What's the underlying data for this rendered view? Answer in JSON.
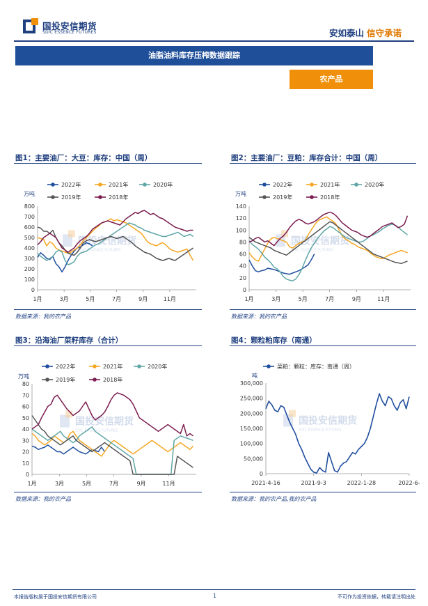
{
  "header": {
    "company_cn": "国投安信期货",
    "company_en": "SDIC ESSENCE FUTURES",
    "slogan_a": "安如泰山",
    "slogan_b": "信守承诺",
    "brand_color": "#1f3f7f",
    "accent_color": "#f0900a"
  },
  "report": {
    "title": "油脂油料库存压榨数据跟踪",
    "category": "农产品"
  },
  "watermark": {
    "cn": "国投安信期货",
    "en": "SDIC ESSENCE FUTURES"
  },
  "figures": [
    {
      "title": "图1：主要油厂：大豆：库存：中国（周）",
      "source": "数据来源：我的农产品"
    },
    {
      "title": "图2：主要油厂：豆粕：库存合计：中国（周）",
      "source": "数据来源：我的农产品"
    },
    {
      "title": "图3：沿海油厂菜籽库存（合计）",
      "source": "数据来源：我的农产品"
    },
    {
      "title": "图4：颗粒粕库存（南通）",
      "source": "数据来源：我的农产品,我的农产品"
    }
  ],
  "chart_data": [
    {
      "type": "line",
      "title": "图1：主要油厂：大豆：库存：中国（周）",
      "ylabel": "万吨",
      "ylim": [
        0,
        800
      ],
      "yticks": [
        "0",
        "100",
        "200",
        "300",
        "400",
        "500",
        "600",
        "700",
        "800"
      ],
      "xlim": [
        1,
        53
      ],
      "x_tick_positions": [
        1,
        9.7,
        18.3,
        26.9,
        35.6,
        44.3
      ],
      "x_tick_labels": [
        "1月",
        "3月",
        "5月",
        "7月",
        "9月",
        "11月"
      ],
      "series": [
        {
          "name": "2022年",
          "color": "#1f4e9e",
          "values": [
            310,
            355,
            330,
            300,
            290,
            320,
            250,
            220,
            170,
            220,
            280,
            330,
            370,
            400,
            410,
            430,
            450,
            440,
            420
          ]
        },
        {
          "name": "2021年",
          "color": "#f5a623",
          "values": [
            500,
            490,
            480,
            420,
            460,
            440,
            400,
            380,
            370,
            360,
            350,
            360,
            380,
            400,
            430,
            470,
            500,
            530,
            560,
            590,
            610,
            640,
            650,
            660,
            680,
            660,
            670,
            660,
            650,
            640,
            620,
            600,
            580,
            560,
            540,
            500,
            460,
            440,
            430,
            420,
            440,
            450,
            430,
            400,
            380,
            370,
            360,
            370,
            380,
            390,
            330,
            280
          ]
        },
        {
          "name": "2020年",
          "color": "#5fa6a6",
          "values": [
            350,
            320,
            300,
            280,
            300,
            320,
            360,
            380,
            360,
            280,
            240,
            250,
            270,
            320,
            350,
            360,
            370,
            390,
            410,
            430,
            440,
            460,
            480,
            500,
            520,
            540,
            560,
            580,
            600,
            620,
            640,
            630,
            620,
            600,
            590,
            570,
            560,
            550,
            540,
            530,
            520,
            510,
            510,
            520,
            530,
            540,
            550,
            530,
            510,
            520,
            530,
            510
          ]
        },
        {
          "name": "2019年",
          "color": "#555555",
          "values": [
            600,
            590,
            560,
            560,
            540,
            570,
            500,
            450,
            420,
            380,
            350,
            340,
            330,
            360,
            400,
            450,
            470,
            480,
            470,
            460,
            470,
            480,
            490,
            500,
            510,
            500,
            490,
            500,
            510,
            490,
            470,
            450,
            420,
            400,
            380,
            360,
            350,
            340,
            320,
            300,
            290,
            280,
            290,
            300,
            290,
            280,
            300,
            320,
            340,
            360,
            380,
            400
          ]
        },
        {
          "name": "2018年",
          "color": "#7b1d4f",
          "values": [
            430,
            460,
            500,
            520,
            540,
            520,
            500,
            450,
            400,
            380,
            360,
            380,
            400,
            440,
            470,
            490,
            510,
            540,
            580,
            600,
            620,
            640,
            650,
            660,
            650,
            640,
            630,
            620,
            650,
            680,
            700,
            720,
            740,
            730,
            750,
            760,
            740,
            720,
            730,
            710,
            690,
            680,
            660,
            640,
            620,
            600,
            590,
            580,
            570,
            560,
            570,
            570
          ]
        }
      ]
    },
    {
      "type": "line",
      "title": "图2：主要油厂：豆粕：库存合计：中国（周）",
      "ylabel": "万吨",
      "ylim": [
        0,
        140
      ],
      "yticks": [
        "0",
        "20",
        "40",
        "60",
        "80",
        "100",
        "120",
        "140"
      ],
      "xlim": [
        1,
        53
      ],
      "x_tick_positions": [
        1,
        9.7,
        18.3,
        26.9,
        35.6,
        44.3
      ],
      "x_tick_labels": [
        "1月",
        "3月",
        "5月",
        "7月",
        "9月",
        "11月"
      ],
      "series": [
        {
          "name": "2022年",
          "color": "#1f4e9e",
          "values": [
            50,
            40,
            32,
            30,
            32,
            33,
            36,
            35,
            34,
            32,
            30,
            28,
            27,
            26,
            28,
            30,
            32,
            35,
            38,
            42,
            50,
            60
          ]
        },
        {
          "name": "2021年",
          "color": "#f5a623",
          "values": [
            62,
            55,
            50,
            48,
            58,
            68,
            78,
            85,
            88,
            86,
            84,
            82,
            80,
            72,
            70,
            74,
            78,
            80,
            82,
            92,
            100,
            108,
            115,
            118,
            120,
            122,
            118,
            115,
            110,
            100,
            90,
            85,
            82,
            78,
            76,
            72,
            70,
            68,
            66,
            62,
            58,
            55,
            53,
            52,
            55,
            58,
            60,
            62,
            64,
            66,
            64,
            62
          ]
        },
        {
          "name": "2020年",
          "color": "#5fa6a6",
          "values": [
            82,
            76,
            72,
            68,
            62,
            55,
            50,
            45,
            38,
            35,
            30,
            22,
            18,
            16,
            15,
            18,
            25,
            35,
            48,
            60,
            70,
            78,
            86,
            92,
            98,
            102,
            106,
            104,
            100,
            96,
            92,
            88,
            86,
            84,
            82,
            80,
            80,
            82,
            86,
            90,
            92,
            95,
            98,
            102,
            105,
            108,
            110,
            108,
            105,
            100,
            96,
            92
          ]
        },
        {
          "name": "2019年",
          "color": "#555555",
          "values": [
            88,
            84,
            80,
            78,
            76,
            74,
            72,
            70,
            66,
            64,
            62,
            60,
            58,
            62,
            66,
            70,
            74,
            78,
            82,
            86,
            90,
            94,
            98,
            102,
            106,
            110,
            114,
            112,
            108,
            104,
            100,
            96,
            92,
            88,
            84,
            80,
            76,
            72,
            68,
            64,
            60,
            58,
            56,
            54,
            52,
            50,
            48,
            46,
            45,
            44,
            46,
            48
          ]
        },
        {
          "name": "2018年",
          "color": "#7b1d4f",
          "values": [
            80,
            82,
            86,
            88,
            84,
            80,
            82,
            78,
            74,
            80,
            86,
            90,
            96,
            104,
            110,
            115,
            118,
            116,
            112,
            110,
            112,
            114,
            118,
            122,
            126,
            128,
            130,
            128,
            124,
            118,
            112,
            108,
            104,
            100,
            98,
            96,
            92,
            90,
            88,
            90,
            94,
            98,
            102,
            106,
            108,
            110,
            112,
            108,
            104,
            106,
            110,
            124
          ]
        }
      ]
    },
    {
      "type": "line",
      "title": "图3：沿海油厂菜籽库存（合计）",
      "ylabel": "万吨",
      "ylim": [
        0,
        80
      ],
      "yticks": [
        "0",
        "10",
        "20",
        "30",
        "40",
        "50",
        "60",
        "70",
        "80"
      ],
      "xlim": [
        1,
        53
      ],
      "x_tick_positions": [
        1,
        9.7,
        18.3,
        26.9,
        35.6,
        44.3
      ],
      "x_tick_labels": [
        "1月",
        "3月",
        "5月",
        "7月",
        "9月",
        "11月"
      ],
      "series": [
        {
          "name": "2022年",
          "color": "#1f4e9e",
          "values": [
            25,
            24,
            22,
            23,
            24,
            26,
            24,
            22,
            20,
            20,
            18,
            20,
            22,
            24,
            22,
            20,
            19,
            18,
            20,
            22,
            21,
            20,
            24,
            20
          ]
        },
        {
          "name": "2021年",
          "color": "#f5a623",
          "values": [
            36,
            34,
            30,
            28,
            26,
            28,
            30,
            34,
            32,
            30,
            28,
            30,
            36,
            38,
            34,
            30,
            28,
            26,
            24,
            22,
            20,
            18,
            16,
            20,
            24,
            28,
            30,
            28,
            26,
            24,
            22,
            20,
            18,
            20,
            22,
            24,
            26,
            28,
            30,
            28,
            26,
            24,
            22,
            20,
            22,
            24,
            26,
            28,
            26,
            24,
            22,
            25
          ]
        },
        {
          "name": "2020年",
          "color": "#5fa6a6",
          "values": [
            40,
            38,
            36,
            34,
            32,
            30,
            32,
            34,
            36,
            38,
            34,
            32,
            30,
            28,
            30,
            34,
            36,
            38,
            40,
            42,
            38,
            36,
            34,
            32,
            30,
            28,
            26,
            24,
            22,
            20,
            18,
            16,
            14,
            0,
            0,
            0,
            0,
            0,
            0,
            0,
            0,
            0,
            0,
            0,
            0,
            30,
            32,
            34,
            33,
            32,
            31,
            30
          ]
        },
        {
          "name": "2019年",
          "color": "#555555",
          "values": [
            52,
            48,
            44,
            40,
            38,
            34,
            32,
            30,
            28,
            26,
            28,
            30,
            32,
            34,
            30,
            28,
            26,
            24,
            22,
            20,
            22,
            24,
            26,
            28,
            26,
            24,
            22,
            20,
            18,
            16,
            14,
            12,
            0,
            0,
            0,
            0,
            0,
            0,
            0,
            0,
            0,
            0,
            0,
            0,
            0,
            0,
            16,
            14,
            12,
            10,
            8,
            6
          ]
        },
        {
          "name": "2018年",
          "color": "#7b1d4f",
          "values": [
            40,
            42,
            44,
            50,
            55,
            60,
            62,
            68,
            70,
            66,
            62,
            58,
            55,
            52,
            54,
            56,
            60,
            64,
            58,
            52,
            48,
            50,
            52,
            55,
            60,
            66,
            70,
            72,
            71,
            70,
            68,
            66,
            62,
            56,
            50,
            48,
            46,
            44,
            42,
            40,
            38,
            40,
            42,
            44,
            42,
            40,
            38,
            36,
            44,
            34,
            36,
            34
          ]
        }
      ]
    },
    {
      "type": "line",
      "title": "图4：颗粒粕库存（南通）",
      "legend": "菜粕：颗粒：库存：南通（周）",
      "ylabel": "吨",
      "ylim": [
        0,
        300000
      ],
      "yticks": [
        "0",
        "50,000",
        "100,000",
        "150,000",
        "200,000",
        "250,000",
        "300,000"
      ],
      "x_tick_labels": [
        "2021-4-16",
        "2021-9-3",
        "2022-1-28",
        "2022-6-"
      ],
      "series": [
        {
          "name": "菜粕：颗粒：库存：南通（周）",
          "color": "#1f4e9e",
          "values": [
            215000,
            240000,
            228000,
            210000,
            205000,
            225000,
            220000,
            195000,
            170000,
            150000,
            130000,
            100000,
            80000,
            55000,
            35000,
            15000,
            5000,
            2000,
            20000,
            10000,
            5000,
            70000,
            40000,
            10000,
            5000,
            25000,
            35000,
            40000,
            55000,
            70000,
            65000,
            80000,
            90000,
            100000,
            120000,
            150000,
            190000,
            230000,
            265000,
            240000,
            225000,
            255000,
            248000,
            225000,
            210000,
            235000,
            245000,
            215000,
            255000
          ]
        }
      ]
    }
  ],
  "footer": {
    "left": "本报告版权属于国投安信期货有限公司",
    "page": "1",
    "right": "不可作为投资依据，转载请注明出处"
  }
}
